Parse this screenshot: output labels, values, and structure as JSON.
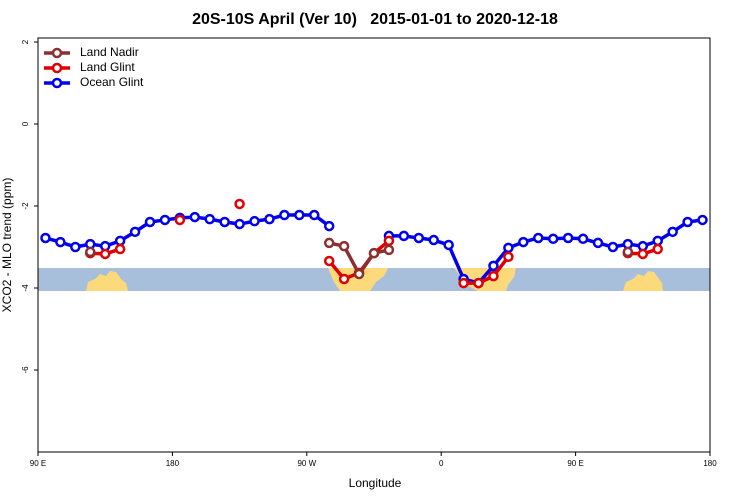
{
  "chart_data": {
    "type": "line",
    "title": "20S-10S April (Ver 10)   2015-01-01 to 2020-12-18",
    "x_label": "Longitude",
    "y_label": "XCO2 - MLO trend (ppm)",
    "x": [
      95,
      105,
      115,
      125,
      135,
      145,
      155,
      165,
      175,
      185,
      195,
      205,
      215,
      225,
      235,
      245,
      255,
      265,
      275,
      285,
      295,
      305,
      315,
      325,
      335,
      345,
      355,
      365,
      375,
      385,
      395,
      405,
      415,
      425,
      435,
      445,
      455,
      465,
      475,
      485,
      495,
      505,
      515,
      525,
      535
    ],
    "xlim": [
      90,
      540
    ],
    "xticks": [
      {
        "value": 90,
        "label": "90 E"
      },
      {
        "value": 180,
        "label": "180"
      },
      {
        "value": 270,
        "label": "90 W"
      },
      {
        "value": 360,
        "label": "0"
      },
      {
        "value": 450,
        "label": "90 E"
      },
      {
        "value": 540,
        "label": "180"
      }
    ],
    "ylim": [
      -8,
      2
    ],
    "yticks": [
      -6,
      -4,
      -2,
      0,
      2
    ],
    "legend": "top-left",
    "series": [
      {
        "name": "Land Nadir",
        "color": "#8b3030",
        "values": [
          null,
          null,
          null,
          -3.12,
          null,
          null,
          null,
          null,
          null,
          null,
          null,
          null,
          null,
          null,
          null,
          null,
          null,
          null,
          null,
          -2.9,
          -2.98,
          -3.66,
          -3.15,
          -3.07,
          null,
          null,
          null,
          null,
          null,
          null,
          null,
          null,
          null,
          null,
          null,
          null,
          null,
          null,
          null,
          -3.12,
          null,
          null,
          null,
          null,
          null
        ]
      },
      {
        "name": "Land Glint",
        "color": "#e00000",
        "values": [
          null,
          null,
          null,
          -3.15,
          -3.17,
          -3.05,
          null,
          null,
          null,
          -2.34,
          null,
          null,
          null,
          -1.95,
          null,
          null,
          null,
          null,
          null,
          -3.34,
          -3.78,
          -3.63,
          -3.15,
          -2.85,
          null,
          null,
          null,
          null,
          -3.88,
          -3.88,
          -3.71,
          -3.24,
          null,
          null,
          null,
          null,
          null,
          null,
          null,
          -3.15,
          -3.17,
          -3.05,
          null,
          null,
          null
        ]
      },
      {
        "name": "Ocean Glint",
        "color": "#0000ee",
        "values": [
          -2.78,
          -2.88,
          -3.0,
          -2.93,
          -2.98,
          -2.85,
          -2.63,
          -2.39,
          -2.34,
          -2.29,
          -2.27,
          -2.32,
          -2.39,
          -2.44,
          -2.37,
          -2.32,
          -2.22,
          -2.22,
          -2.22,
          -2.49,
          null,
          null,
          null,
          -2.73,
          -2.73,
          -2.78,
          -2.83,
          -2.95,
          -3.78,
          -3.88,
          -3.46,
          -3.02,
          -2.88,
          -2.78,
          -2.8,
          -2.78,
          -2.8,
          -2.9,
          -3.0,
          -2.93,
          -2.98,
          -2.85,
          -2.63,
          -2.39,
          -2.34
        ]
      }
    ]
  }
}
